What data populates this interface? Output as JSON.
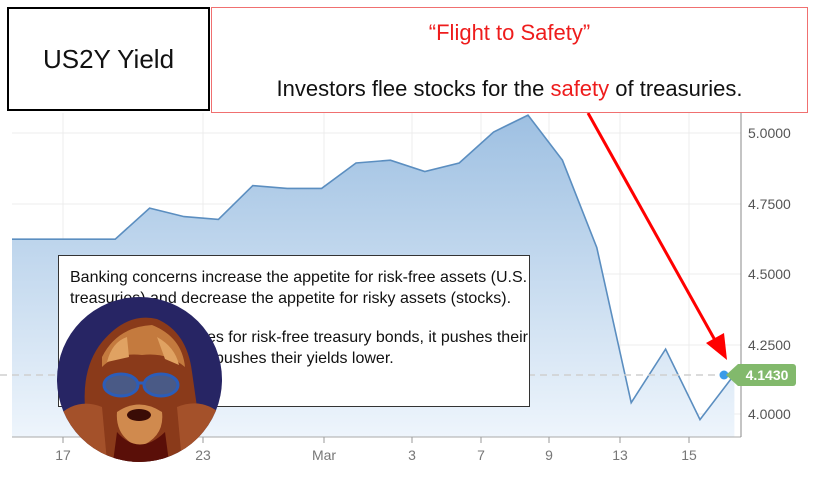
{
  "title_box": {
    "label": "US2Y Yield"
  },
  "headline": {
    "title": "“Flight to Safety”",
    "sub_before": "Investors flee stocks for the ",
    "sub_highlight": "safety",
    "sub_after": " of treasuries."
  },
  "note": {
    "paragraph1": "Banking concerns increase the appetite for risk-free assets (U.S. treasuries) and decrease the appetite for risky assets (stocks).",
    "paragraph2": "As demand increases for risk-free treasury bonds, it pushes their prices higher, which pushes their yields lower."
  },
  "last_price": {
    "label": "4.1430",
    "color": "#82b96c"
  },
  "colors": {
    "line": "#5b8ec0",
    "fill_top": "#a9c8e6",
    "accent_red": "#ee1c1c",
    "marker": "#3b9be8"
  },
  "chart_data": {
    "type": "area",
    "title": "US2Y Yield",
    "xlabel": "",
    "ylabel": "",
    "ylim": [
      3.93,
      5.06
    ],
    "y_ticks": [
      "5.0000",
      "4.7500",
      "4.5000",
      "4.2500",
      "4.0000"
    ],
    "x_tick_labels": [
      "17",
      "23",
      "Mar",
      "3",
      "7",
      "9",
      "13",
      "15"
    ],
    "grid": true,
    "last_value": 4.143,
    "x": [
      "Feb 14",
      "Feb 15",
      "Feb 16",
      "Feb 17",
      "Feb 21",
      "Feb 22",
      "Feb 23",
      "Feb 24",
      "Feb 27",
      "Feb 28",
      "Mar 1",
      "Mar 2",
      "Mar 3",
      "Mar 6",
      "Mar 7",
      "Mar 8",
      "Mar 9",
      "Mar 10",
      "Mar 13",
      "Mar 14",
      "Mar 15",
      "Mar 16"
    ],
    "values": [
      4.62,
      4.62,
      4.62,
      4.62,
      4.73,
      4.7,
      4.69,
      4.81,
      4.8,
      4.8,
      4.89,
      4.9,
      4.86,
      4.89,
      5.0,
      5.06,
      4.9,
      4.59,
      4.04,
      4.23,
      3.98,
      4.14
    ]
  },
  "annotations": {
    "arrow": "red arrow from headline box to last data point"
  }
}
